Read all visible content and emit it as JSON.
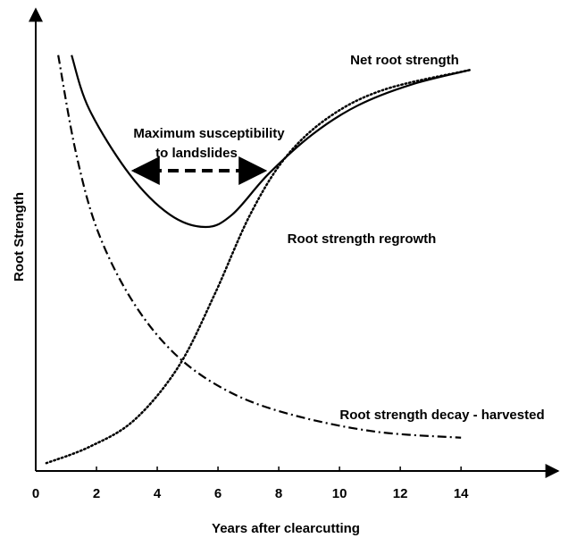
{
  "chart_data": {
    "type": "line",
    "xlabel": "Years after clearcutting",
    "ylabel": "Root Strength",
    "xlim": [
      0,
      17.2
    ],
    "ylim": [
      0,
      100
    ],
    "xticks": [
      0,
      2,
      4,
      6,
      8,
      10,
      12,
      14
    ],
    "annotations": [
      "Maximum susceptibility",
      "to landslides"
    ],
    "series": [
      {
        "name": "Net root strength",
        "color": "#000000",
        "style": "solid",
        "x": [
          1.18,
          1.76,
          3.09,
          4.41,
          5.59,
          6.47,
          7.65,
          9.12,
          10.6,
          12.35,
          14.3
        ],
        "values": [
          90,
          78.3,
          64.2,
          55.5,
          52.8,
          55.5,
          64.2,
          72.9,
          79.1,
          83.6,
          86.8
        ]
      },
      {
        "name": "Root strength regrowth",
        "color": "#000000",
        "style": "dotted",
        "x": [
          0.35,
          1.76,
          3.24,
          4.7,
          5.88,
          7.06,
          8.24,
          9.7,
          11.5,
          14.3
        ],
        "values": [
          1.7,
          5.2,
          11,
          22.6,
          38.1,
          55.5,
          68,
          76.8,
          82.6,
          86.8
        ]
      },
      {
        "name": "Root strength decay - harvested",
        "color": "#000000",
        "style": "dashdot",
        "x": [
          0.74,
          1.32,
          2.06,
          3.24,
          4.7,
          6.47,
          8.53,
          11.2,
          14
        ],
        "values": [
          90,
          69,
          51.6,
          36.2,
          24.6,
          16.8,
          12,
          8.5,
          7.2
        ]
      }
    ]
  }
}
